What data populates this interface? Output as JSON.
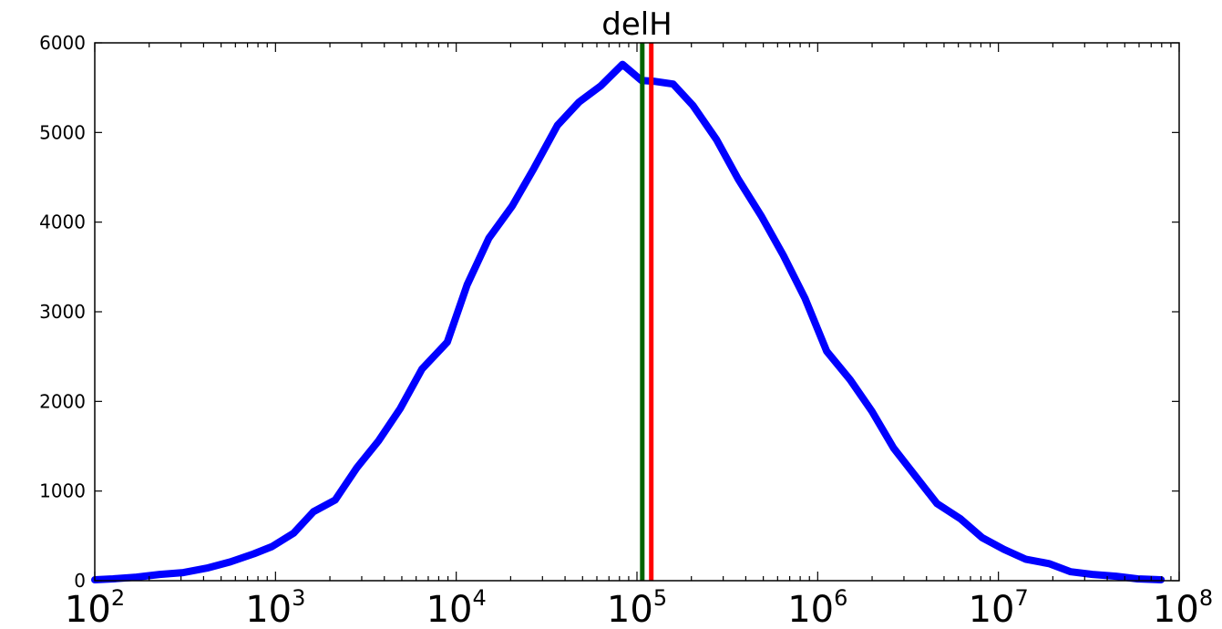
{
  "chart_data": {
    "type": "line",
    "title": "delH",
    "xlabel": "",
    "ylabel": "",
    "xscale": "log",
    "xlim": [
      100,
      100000000
    ],
    "ylim": [
      0,
      6000
    ],
    "grid": false,
    "y_ticks": [
      "0",
      "1000",
      "2000",
      "3000",
      "4000",
      "5000",
      "6000"
    ],
    "x_ticks": [
      {
        "base": "10",
        "exp": "2",
        "value": 100
      },
      {
        "base": "10",
        "exp": "3",
        "value": 1000
      },
      {
        "base": "10",
        "exp": "4",
        "value": 10000
      },
      {
        "base": "10",
        "exp": "5",
        "value": 100000
      },
      {
        "base": "10",
        "exp": "6",
        "value": 1000000
      },
      {
        "base": "10",
        "exp": "7",
        "value": 10000000
      },
      {
        "base": "10",
        "exp": "8",
        "value": 100000000
      }
    ],
    "series": [
      {
        "color": "#0000ff",
        "x": [
          100,
          126,
          170,
          229,
          309,
          417,
          562,
          759,
          955,
          1259,
          1622,
          2138,
          2818,
          3715,
          4898,
          6457,
          8913,
          11482,
          15136,
          20417,
          26915,
          36308,
          47863,
          63096,
          83176,
          105925,
          125893,
          158489,
          204174,
          275423,
          363078,
          489779,
          645654,
          851138,
          1122018,
          1513561,
          1995262,
          2630268,
          3467369,
          4570882,
          6165950,
          8128305,
          10715193,
          14125375,
          19054607,
          25118864,
          33113112,
          44668359,
          58884366,
          79432823
        ],
        "y": [
          10,
          20,
          40,
          70,
          90,
          140,
          210,
          300,
          380,
          530,
          770,
          900,
          1260,
          1560,
          1920,
          2360,
          2660,
          3300,
          3820,
          4180,
          4600,
          5080,
          5340,
          5520,
          5760,
          5580,
          5570,
          5540,
          5300,
          4920,
          4480,
          4060,
          3630,
          3150,
          2560,
          2240,
          1890,
          1480,
          1170,
          860,
          690,
          480,
          350,
          240,
          190,
          100,
          70,
          50,
          20,
          10
        ]
      }
    ],
    "vertical_lines": [
      {
        "x": 107000,
        "color": "#006400"
      },
      {
        "x": 120000,
        "color": "#ff0000"
      }
    ]
  }
}
